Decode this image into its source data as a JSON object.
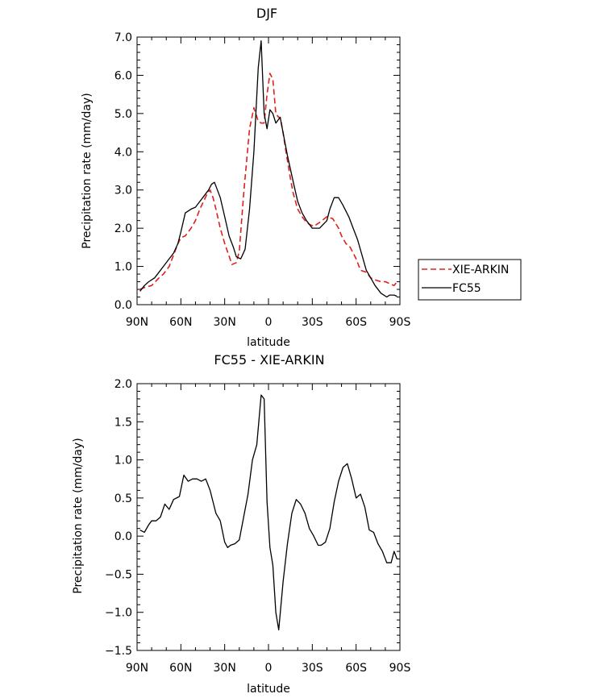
{
  "chart_data": [
    {
      "type": "line",
      "title": "DJF",
      "xlabel": "latitude",
      "ylabel": "Precipitation rate (mm/day)",
      "xlim": [
        90,
        -90
      ],
      "ylim": [
        0,
        7
      ],
      "xticks": [
        90,
        60,
        30,
        0,
        -30,
        -60,
        -90
      ],
      "xtick_labels": [
        "90N",
        "60N",
        "30N",
        "0",
        "30S",
        "60S",
        "90S"
      ],
      "yticks": [
        0,
        1,
        2,
        3,
        4,
        5,
        6,
        7
      ],
      "ytick_labels": [
        "0.0",
        "1.0",
        "2.0",
        "3.0",
        "4.0",
        "5.0",
        "6.0",
        "7.0"
      ],
      "legend_position": "right",
      "series": [
        {
          "name": "XIE-ARKIN",
          "color": "#e0201b",
          "dash": "dashed",
          "x": [
            88,
            85,
            80,
            75,
            72,
            68,
            65,
            62,
            60,
            57,
            53,
            50,
            47,
            42,
            40,
            38,
            36,
            33,
            30,
            25,
            22,
            20,
            17,
            13,
            10,
            7,
            5,
            3,
            1,
            -1,
            -3,
            -5,
            -7,
            -8,
            -10,
            -12,
            -15,
            -17,
            -20,
            -23,
            -25,
            -28,
            -31,
            -35,
            -40,
            -44,
            -48,
            -50,
            -53,
            -56,
            -60,
            -63,
            -67,
            -70,
            -73,
            -77,
            -80,
            -83,
            -86,
            -88
          ],
          "y": [
            0.4,
            0.45,
            0.5,
            0.7,
            0.8,
            1.0,
            1.3,
            1.6,
            1.75,
            1.8,
            2.0,
            2.2,
            2.5,
            2.9,
            3.0,
            2.8,
            2.5,
            2.0,
            1.6,
            1.05,
            1.1,
            1.4,
            2.9,
            4.6,
            5.15,
            4.8,
            4.75,
            4.75,
            5.5,
            6.05,
            5.9,
            5.0,
            4.9,
            4.9,
            4.5,
            4.0,
            3.3,
            2.9,
            2.5,
            2.3,
            2.2,
            2.1,
            2.05,
            2.15,
            2.3,
            2.25,
            2.0,
            1.8,
            1.6,
            1.5,
            1.2,
            0.9,
            0.85,
            0.7,
            0.65,
            0.6,
            0.6,
            0.55,
            0.5,
            0.6
          ]
        },
        {
          "name": "FC55",
          "color": "#000000",
          "dash": "solid",
          "x": [
            88,
            85,
            82,
            78,
            75,
            72,
            68,
            65,
            62,
            60,
            57,
            53,
            50,
            47,
            44,
            41,
            39,
            37,
            33,
            30,
            27,
            24,
            22,
            19,
            16,
            13,
            10,
            7,
            5,
            3,
            1,
            -1,
            -3,
            -5,
            -8,
            -10,
            -13,
            -17,
            -20,
            -23,
            -26,
            -30,
            -35,
            -40,
            -42,
            -45,
            -48,
            -51,
            -55,
            -58,
            -61,
            -64,
            -67,
            -70,
            -73,
            -77,
            -81,
            -83,
            -86,
            -88
          ],
          "y": [
            0.35,
            0.5,
            0.6,
            0.7,
            0.85,
            1.0,
            1.2,
            1.35,
            1.6,
            1.9,
            2.4,
            2.5,
            2.55,
            2.7,
            2.85,
            3.0,
            3.15,
            3.2,
            2.8,
            2.3,
            1.8,
            1.5,
            1.25,
            1.2,
            1.45,
            2.5,
            4.0,
            6.2,
            6.9,
            5.0,
            4.6,
            5.1,
            5.0,
            4.75,
            4.9,
            4.5,
            3.9,
            3.2,
            2.7,
            2.4,
            2.2,
            2.0,
            2.0,
            2.2,
            2.5,
            2.8,
            2.8,
            2.6,
            2.3,
            2.0,
            1.7,
            1.3,
            0.9,
            0.7,
            0.5,
            0.3,
            0.2,
            0.25,
            0.25,
            0.22
          ]
        }
      ]
    },
    {
      "type": "line",
      "title": "FC55 - XIE-ARKIN",
      "xlabel": "latitude",
      "ylabel": "Precipitation rate (mm/day)",
      "xlim": [
        90,
        -90
      ],
      "ylim": [
        -1.5,
        2
      ],
      "xticks": [
        90,
        60,
        30,
        0,
        -30,
        -60,
        -90
      ],
      "xtick_labels": [
        "90N",
        "60N",
        "30N",
        "0",
        "30S",
        "60S",
        "90S"
      ],
      "yticks": [
        -1.5,
        -1.0,
        -0.5,
        0,
        0.5,
        1.0,
        1.5,
        2.0
      ],
      "ytick_labels": [
        "−1.5",
        "−1.0",
        "−0.5",
        "0.0",
        "0.5",
        "1.0",
        "1.5",
        "2.0"
      ],
      "series": [
        {
          "name": "",
          "color": "#000000",
          "dash": "solid",
          "x": [
            88,
            85,
            82,
            80,
            77,
            74,
            71,
            68,
            65,
            61,
            58,
            55,
            52,
            49,
            46,
            43,
            40,
            38,
            36,
            33,
            30,
            28,
            26,
            23,
            20,
            17,
            14,
            11,
            8,
            5,
            3,
            1,
            -1,
            -3,
            -5,
            -7,
            -10,
            -13,
            -16,
            -19,
            -22,
            -25,
            -28,
            -31,
            -34,
            -36,
            -39,
            -42,
            -45,
            -48,
            -51,
            -54,
            -57,
            -60,
            -63,
            -66,
            -69,
            -72,
            -75,
            -78,
            -81,
            -84,
            -86,
            -88
          ],
          "y": [
            0.08,
            0.05,
            0.15,
            0.2,
            0.2,
            0.25,
            0.42,
            0.35,
            0.48,
            0.52,
            0.8,
            0.72,
            0.75,
            0.75,
            0.72,
            0.75,
            0.6,
            0.45,
            0.3,
            0.2,
            -0.08,
            -0.15,
            -0.12,
            -0.1,
            -0.05,
            0.25,
            0.55,
            1.0,
            1.2,
            1.85,
            1.8,
            0.45,
            -0.15,
            -0.38,
            -1.0,
            -1.23,
            -0.6,
            -0.1,
            0.3,
            0.48,
            0.42,
            0.3,
            0.1,
            0.0,
            -0.12,
            -0.12,
            -0.08,
            0.1,
            0.45,
            0.72,
            0.9,
            0.95,
            0.75,
            0.5,
            0.55,
            0.38,
            0.08,
            0.05,
            -0.1,
            -0.2,
            -0.35,
            -0.35,
            -0.2,
            -0.3
          ]
        }
      ]
    }
  ]
}
